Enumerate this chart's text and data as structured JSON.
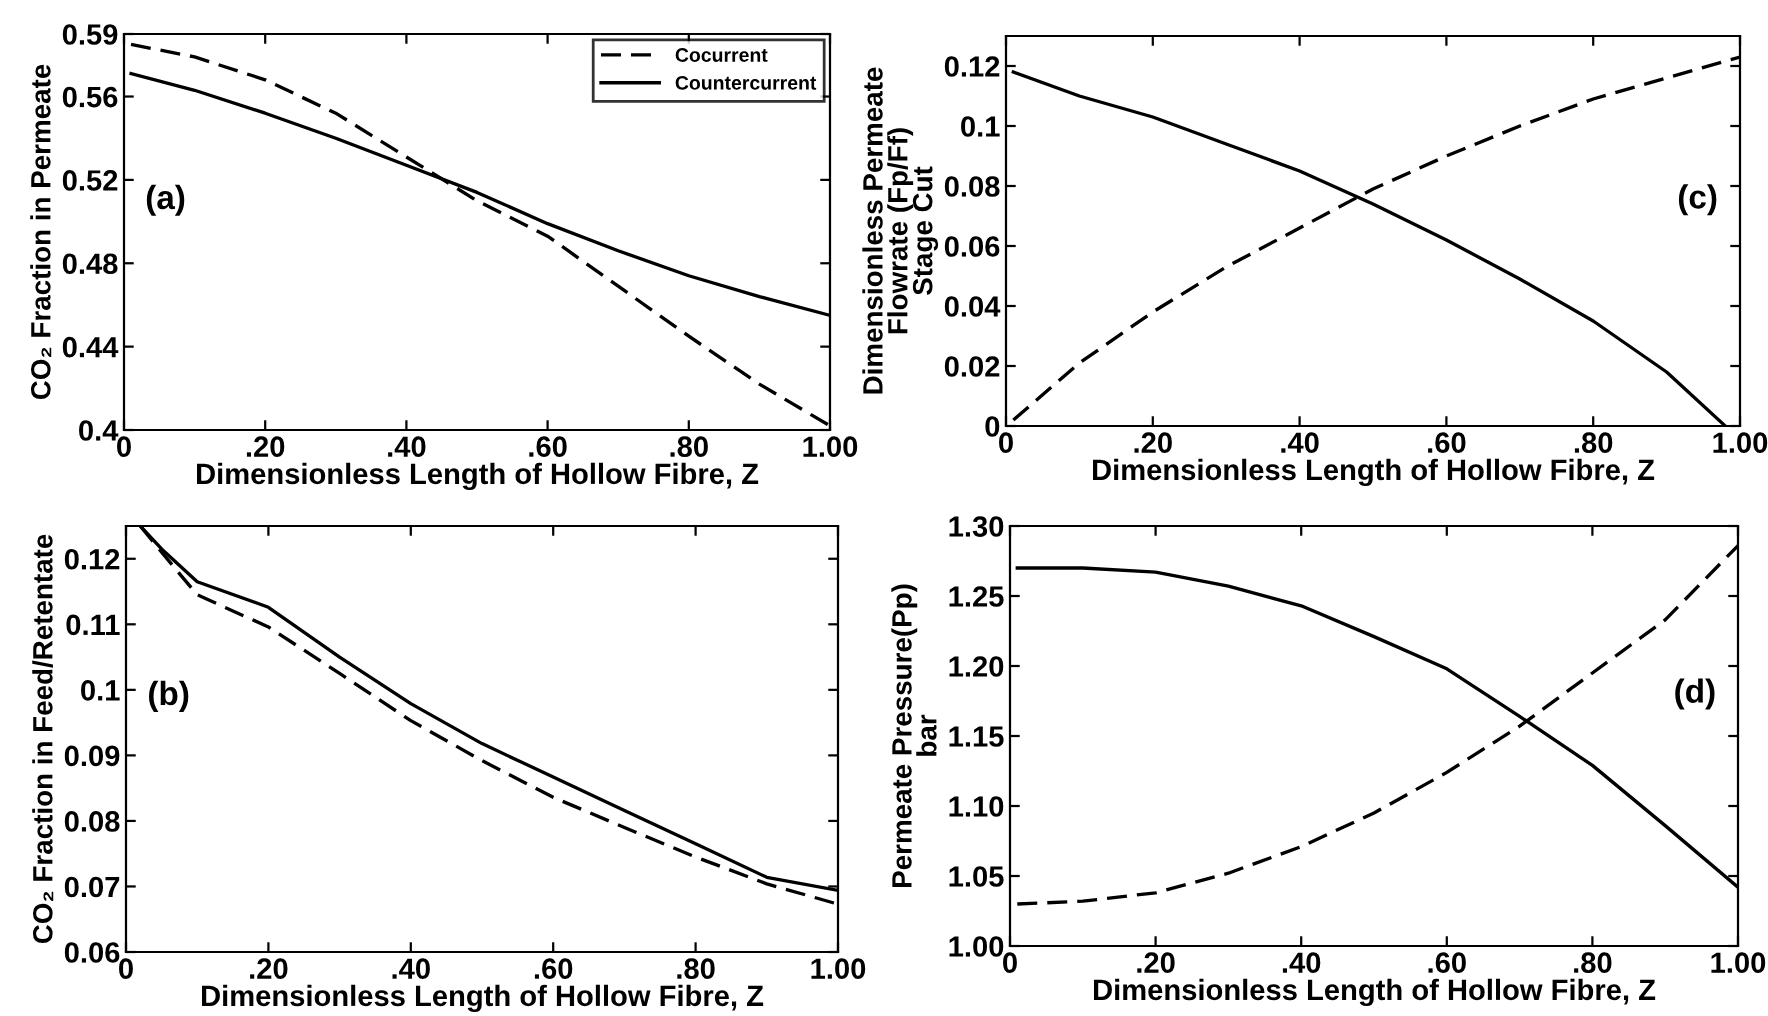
{
  "chart_data": [
    {
      "type": "line",
      "ylabel": "CO₂ Fraction in Permeate",
      "xlabel": "Dimensionless Length of Hollow Fibre, Z",
      "annotations": [
        "(a)"
      ],
      "x": [
        0.01,
        0.1,
        0.2,
        0.3,
        0.4,
        0.5,
        0.6,
        0.7,
        0.8,
        0.9,
        1.0
      ],
      "series": [
        {
          "name": "Cocurrent",
          "color": "#000000",
          "line_style": "dashed",
          "values": [
            0.585,
            0.579,
            0.568,
            0.552,
            0.531,
            0.51,
            0.493,
            0.469,
            0.445,
            0.422,
            0.402
          ]
        },
        {
          "name": "Countercurrent",
          "color": "#000000",
          "line_style": "solid",
          "values": [
            0.571,
            0.563,
            0.552,
            0.54,
            0.527,
            0.514,
            0.499,
            0.486,
            0.474,
            0.464,
            0.455
          ]
        }
      ],
      "xlim": [
        0,
        1
      ],
      "xticks": [
        {
          "value": 0,
          "label": "0"
        },
        {
          "value": 0.2,
          "label": ".20"
        },
        {
          "value": 0.4,
          "label": ".40"
        },
        {
          "value": 0.6,
          "label": ".60"
        },
        {
          "value": 0.8,
          "label": ".80"
        },
        {
          "value": 1.0,
          "label": "1.00"
        }
      ],
      "ylim": [
        0.4,
        0.59
      ],
      "yticks": [
        0.4,
        0.44,
        0.48,
        0.52,
        0.56,
        0.59
      ],
      "legend": "top right",
      "grid": false
    },
    {
      "type": "line",
      "ylabel": "Dimensionless Permeate\nFlowrate (Fp/Ff)\nStage Cut",
      "xlabel": "Dimensionless Length of Hollow Fibre, Z",
      "annotations": [
        "(c)"
      ],
      "x": [
        0.01,
        0.1,
        0.2,
        0.3,
        0.4,
        0.5,
        0.6,
        0.7,
        0.8,
        0.9,
        0.98
      ],
      "series": [
        {
          "color": "#000000",
          "line_style": "dashed",
          "x": [
            0.01,
            0.1,
            0.2,
            0.3,
            0.4,
            0.5,
            0.6,
            0.7,
            0.8,
            0.9,
            1.0
          ],
          "values": [
            0.002,
            0.021,
            0.038,
            0.053,
            0.066,
            0.079,
            0.09,
            0.1,
            0.109,
            0.116,
            0.123
          ]
        },
        {
          "color": "#000000",
          "line_style": "solid",
          "values": [
            0.118,
            0.11,
            0.103,
            0.094,
            0.085,
            0.074,
            0.062,
            0.049,
            0.035,
            0.018,
            0.0
          ]
        }
      ],
      "xlim": [
        0,
        1
      ],
      "xticks": [
        {
          "value": 0,
          "label": "0"
        },
        {
          "value": 0.2,
          "label": ".20"
        },
        {
          "value": 0.4,
          "label": ".40"
        },
        {
          "value": 0.6,
          "label": ".60"
        },
        {
          "value": 0.8,
          "label": ".80"
        },
        {
          "value": 1.0,
          "label": "1.00"
        }
      ],
      "ylim": [
        0,
        0.13
      ],
      "yticks": [
        0,
        0.02,
        0.04,
        0.06,
        0.08,
        0.1,
        0.12
      ],
      "grid": false
    },
    {
      "type": "line",
      "ylabel": "CO₂ Fraction in Feed/Retentate",
      "xlabel": "Dimensionless Length of Hollow Fibre, Z",
      "annotations": [
        "(b)"
      ],
      "x": [
        0.02,
        0.05,
        0.1,
        0.2,
        0.3,
        0.4,
        0.5,
        0.6,
        0.7,
        0.8,
        0.9,
        1.0
      ],
      "series": [
        {
          "color": "#000000",
          "line_style": "dashed",
          "values": [
            0.125,
            0.121,
            0.1145,
            0.1096,
            0.1025,
            0.0953,
            0.0892,
            0.0836,
            0.079,
            0.0745,
            0.0704,
            0.0673
          ]
        },
        {
          "color": "#000000",
          "line_style": "solid",
          "values": [
            0.125,
            0.1215,
            0.1165,
            0.1126,
            0.105,
            0.0979,
            0.0918,
            0.0867,
            0.0816,
            0.0765,
            0.0714,
            0.0694
          ]
        }
      ],
      "xlim": [
        0,
        1
      ],
      "xticks": [
        {
          "value": 0,
          "label": "0"
        },
        {
          "value": 0.2,
          "label": ".20"
        },
        {
          "value": 0.4,
          "label": ".40"
        },
        {
          "value": 0.6,
          "label": ".60"
        },
        {
          "value": 0.8,
          "label": ".80"
        },
        {
          "value": 1.0,
          "label": "1.00"
        }
      ],
      "ylim": [
        0.06,
        0.125
      ],
      "yticks": [
        {
          "value": 0.06,
          "label": "0.06"
        },
        {
          "value": 0.07,
          "label": "0.07"
        },
        {
          "value": 0.08,
          "label": "0.08"
        },
        {
          "value": 0.09,
          "label": "0.09"
        },
        {
          "value": 0.1,
          "label": "0.1"
        },
        {
          "value": 0.11,
          "label": "0.11"
        },
        {
          "value": 0.12,
          "label": "0.12"
        }
      ],
      "grid": false
    },
    {
      "type": "line",
      "ylabel": "Permeate Pressure(Pp)\nbar",
      "xlabel": "Dimensionless Length of Hollow Fibre, Z",
      "annotations": [
        "(d)"
      ],
      "x": [
        0.01,
        0.1,
        0.2,
        0.3,
        0.4,
        0.5,
        0.6,
        0.7,
        0.8,
        0.9,
        1.0
      ],
      "series": [
        {
          "color": "#000000",
          "line_style": "dashed",
          "values": [
            1.03,
            1.032,
            1.038,
            1.052,
            1.071,
            1.095,
            1.124,
            1.157,
            1.195,
            1.233,
            1.286
          ]
        },
        {
          "color": "#000000",
          "line_style": "solid",
          "values": [
            1.27,
            1.27,
            1.267,
            1.257,
            1.243,
            1.221,
            1.198,
            1.164,
            1.129,
            1.086,
            1.042
          ]
        }
      ],
      "xlim": [
        0,
        1
      ],
      "xticks": [
        {
          "value": 0,
          "label": "0"
        },
        {
          "value": 0.2,
          "label": ".20"
        },
        {
          "value": 0.4,
          "label": ".40"
        },
        {
          "value": 0.6,
          "label": ".60"
        },
        {
          "value": 0.8,
          "label": ".80"
        },
        {
          "value": 1.0,
          "label": "1.00"
        }
      ],
      "ylim": [
        1.0,
        1.3
      ],
      "yticks": [
        {
          "value": 1.0,
          "label": "1.00"
        },
        {
          "value": 1.05,
          "label": "1.05"
        },
        {
          "value": 1.1,
          "label": "1.10"
        },
        {
          "value": 1.15,
          "label": "1.15"
        },
        {
          "value": 1.2,
          "label": "1.20"
        },
        {
          "value": 1.25,
          "label": "1.25"
        },
        {
          "value": 1.3,
          "label": "1.30"
        }
      ],
      "grid": false
    }
  ]
}
